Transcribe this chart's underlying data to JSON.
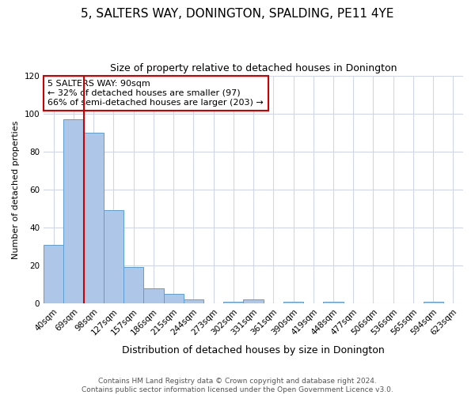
{
  "title": "5, SALTERS WAY, DONINGTON, SPALDING, PE11 4YE",
  "subtitle": "Size of property relative to detached houses in Donington",
  "xlabel": "Distribution of detached houses by size in Donington",
  "ylabel": "Number of detached properties",
  "bar_labels": [
    "40sqm",
    "69sqm",
    "98sqm",
    "127sqm",
    "157sqm",
    "186sqm",
    "215sqm",
    "244sqm",
    "273sqm",
    "302sqm",
    "331sqm",
    "361sqm",
    "390sqm",
    "419sqm",
    "448sqm",
    "477sqm",
    "506sqm",
    "536sqm",
    "565sqm",
    "594sqm",
    "623sqm"
  ],
  "bar_values": [
    31,
    97,
    90,
    49,
    19,
    8,
    5,
    2,
    0,
    1,
    2,
    0,
    1,
    0,
    1,
    0,
    0,
    0,
    0,
    1,
    0
  ],
  "bar_color": "#aec6e8",
  "bar_edge_color": "#5a9fd4",
  "grid_color": "#d0d8e8",
  "vline_color": "#cc0000",
  "vline_x_index": 1.5,
  "annotation_title": "5 SALTERS WAY: 90sqm",
  "annotation_line1": "← 32% of detached houses are smaller (97)",
  "annotation_line2": "66% of semi-detached houses are larger (203) →",
  "annotation_box_color": "#ffffff",
  "annotation_box_edge": "#cc0000",
  "ylim": [
    0,
    120
  ],
  "yticks": [
    0,
    20,
    40,
    60,
    80,
    100,
    120
  ],
  "footer1": "Contains HM Land Registry data © Crown copyright and database right 2024.",
  "footer2": "Contains public sector information licensed under the Open Government Licence v3.0.",
  "title_fontsize": 11,
  "subtitle_fontsize": 9,
  "xlabel_fontsize": 9,
  "ylabel_fontsize": 8,
  "tick_fontsize": 7.5,
  "annotation_fontsize": 8,
  "footer_fontsize": 6.5
}
